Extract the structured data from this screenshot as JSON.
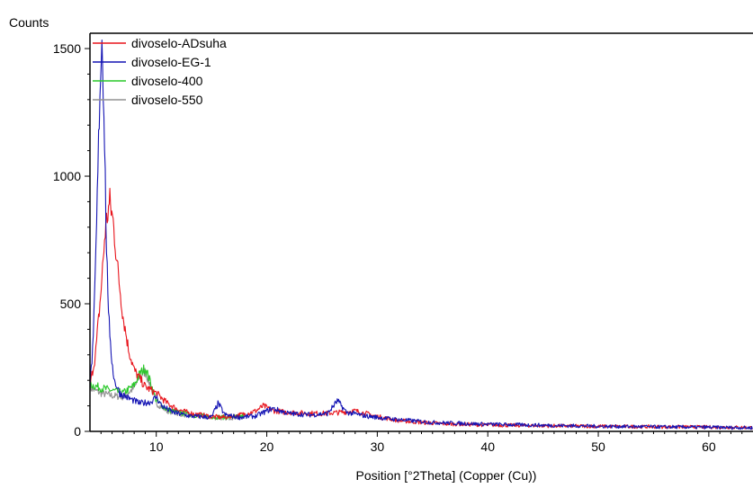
{
  "chart_data": {
    "type": "line",
    "title": "",
    "ylabel": "Counts",
    "xlabel": "Position [°2Theta] (Copper (Cu))",
    "xlim": [
      4,
      64
    ],
    "ylim": [
      0,
      1560
    ],
    "xticks": [
      10,
      20,
      30,
      40,
      50,
      60
    ],
    "yticks": [
      0,
      500,
      1000,
      1500
    ],
    "grid": false,
    "legend_position": "top-left",
    "series": [
      {
        "name": "divoselo-ADsuha",
        "color": "#e8141c",
        "x": [
          4.0,
          4.5,
          5.0,
          5.4,
          5.8,
          6.1,
          6.5,
          7.0,
          7.5,
          8.0,
          9.0,
          10.0,
          11.0,
          12.0,
          13.0,
          14.0,
          15.0,
          16.0,
          17.0,
          18.0,
          19.0,
          19.7,
          20.5,
          21.5,
          23.0,
          25.0,
          26.5,
          28.0,
          29.0,
          30.0,
          31.0,
          32.0,
          34.0,
          36.0,
          40.0,
          45.0,
          50.0,
          55.0,
          60.0,
          64.0
        ],
        "y": [
          180,
          300,
          550,
          800,
          900,
          820,
          640,
          450,
          320,
          240,
          175,
          150,
          110,
          85,
          72,
          65,
          58,
          55,
          60,
          68,
          80,
          100,
          82,
          76,
          72,
          70,
          74,
          80,
          70,
          58,
          50,
          42,
          35,
          30,
          25,
          22,
          20,
          18,
          17,
          15
        ]
      },
      {
        "name": "divoselo-EG-1",
        "color": "#1414b4",
        "x": [
          4.0,
          4.3,
          4.6,
          4.9,
          5.1,
          5.3,
          5.5,
          5.8,
          6.2,
          6.7,
          7.5,
          8.5,
          9.5,
          10.0,
          10.5,
          11.5,
          13.0,
          15.0,
          15.6,
          16.2,
          17.5,
          19.0,
          20.5,
          22.0,
          24.0,
          25.5,
          26.4,
          27.2,
          29.0,
          31.0,
          33.0,
          35.0,
          40.0,
          45.0,
          50.0,
          55.0,
          60.0,
          64.0
        ],
        "y": [
          180,
          350,
          800,
          1350,
          1550,
          1200,
          700,
          350,
          200,
          150,
          130,
          110,
          115,
          135,
          100,
          75,
          60,
          55,
          110,
          65,
          55,
          60,
          90,
          70,
          65,
          70,
          120,
          75,
          60,
          50,
          42,
          35,
          28,
          24,
          20,
          18,
          16,
          14
        ]
      },
      {
        "name": "divoselo-400",
        "color": "#28c828",
        "x": [
          4.0,
          5.0,
          6.0,
          7.0,
          8.0,
          8.5,
          9.0,
          9.5,
          10.0,
          11.0,
          12.5,
          14.0,
          16.0,
          18.0
        ],
        "y": [
          185,
          170,
          160,
          150,
          180,
          225,
          250,
          190,
          120,
          85,
          70,
          60,
          55,
          60
        ]
      },
      {
        "name": "divoselo-550",
        "color": "#909090",
        "x": [
          4.0,
          5.0,
          6.0,
          7.0,
          8.0,
          8.5,
          9.0,
          9.5,
          10.0,
          11.0,
          12.5,
          14.0,
          16.0,
          18.0
        ],
        "y": [
          170,
          150,
          140,
          135,
          170,
          215,
          235,
          175,
          110,
          80,
          65,
          58,
          52,
          58
        ]
      }
    ]
  }
}
